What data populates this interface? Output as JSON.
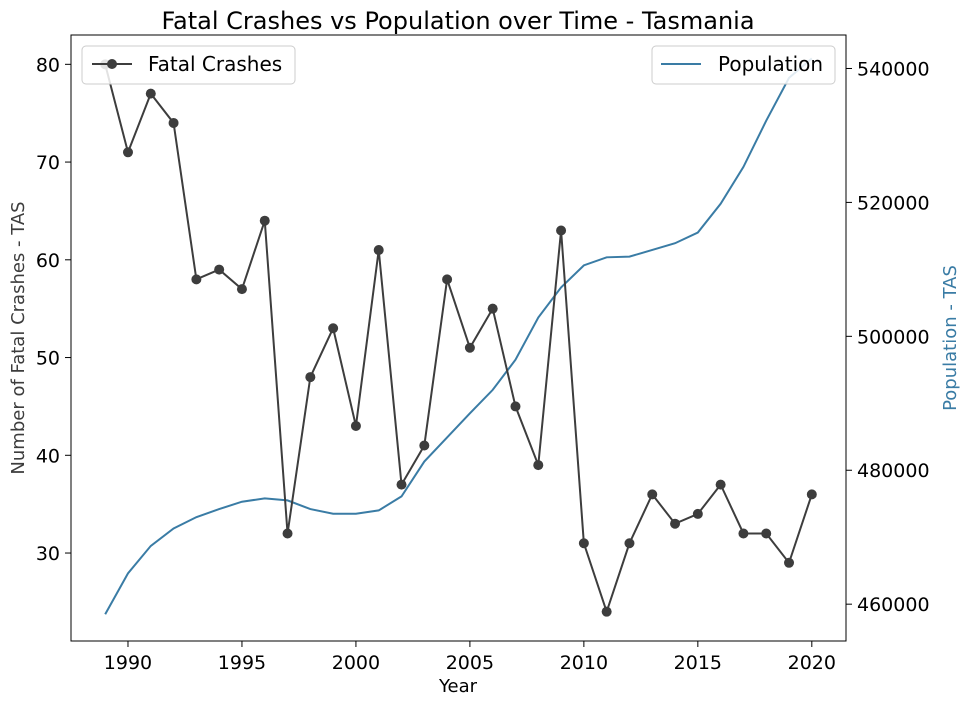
{
  "chart_data": {
    "type": "line",
    "title": "Fatal Crashes vs Population over Time - Tasmania",
    "xlabel": "Year",
    "ylabel_left": "Number of Fatal Crashes - TAS",
    "ylabel_right": "Population - TAS",
    "xlim": [
      1987.5,
      2021.5
    ],
    "ylim_left": [
      21,
      83
    ],
    "ylim_right": [
      454500,
      545000
    ],
    "x_ticks": [
      1990,
      1995,
      2000,
      2005,
      2010,
      2015,
      2020
    ],
    "y_ticks_left": [
      30,
      40,
      50,
      60,
      70,
      80
    ],
    "y_ticks_right": [
      460000,
      480000,
      500000,
      520000,
      540000
    ],
    "grid": false,
    "colors": {
      "crashes": "#3d3d3d",
      "population": "#3a7ca5"
    },
    "series": [
      {
        "name": "Fatal Crashes",
        "axis": "left",
        "marker": "circle",
        "x": [
          1989,
          1990,
          1991,
          1992,
          1993,
          1994,
          1995,
          1996,
          1997,
          1998,
          1999,
          2000,
          2001,
          2002,
          2003,
          2004,
          2005,
          2006,
          2007,
          2008,
          2009,
          2010,
          2011,
          2012,
          2013,
          2014,
          2015,
          2016,
          2017,
          2018,
          2019,
          2020
        ],
        "values": [
          80,
          71,
          77,
          74,
          58,
          59,
          57,
          64,
          32,
          48,
          53,
          43,
          61,
          37,
          41,
          58,
          51,
          55,
          45,
          39,
          63,
          31,
          24,
          31,
          36,
          33,
          34,
          37,
          32,
          32,
          29,
          36
        ]
      },
      {
        "name": "Population",
        "axis": "right",
        "marker": "none",
        "x": [
          1989,
          1990,
          1991,
          1992,
          1993,
          1994,
          1995,
          1996,
          1997,
          1998,
          1999,
          2000,
          2001,
          2002,
          2003,
          2004,
          2005,
          2006,
          2007,
          2008,
          2009,
          2010,
          2011,
          2012,
          2013,
          2014,
          2015,
          2016,
          2017,
          2018,
          2019,
          2020
        ],
        "values": [
          458500,
          464600,
          468700,
          471300,
          473000,
          474200,
          475300,
          475800,
          475500,
          474200,
          473500,
          473500,
          474000,
          476100,
          481300,
          484900,
          488500,
          492000,
          496500,
          502800,
          507300,
          510600,
          511800,
          511900,
          512900,
          513900,
          515500,
          519800,
          525300,
          532200,
          538600,
          541500
        ]
      }
    ],
    "legends": [
      {
        "entries": [
          "Fatal Crashes"
        ],
        "placement": "top-left"
      },
      {
        "entries": [
          "Population"
        ],
        "placement": "top-right"
      }
    ]
  }
}
